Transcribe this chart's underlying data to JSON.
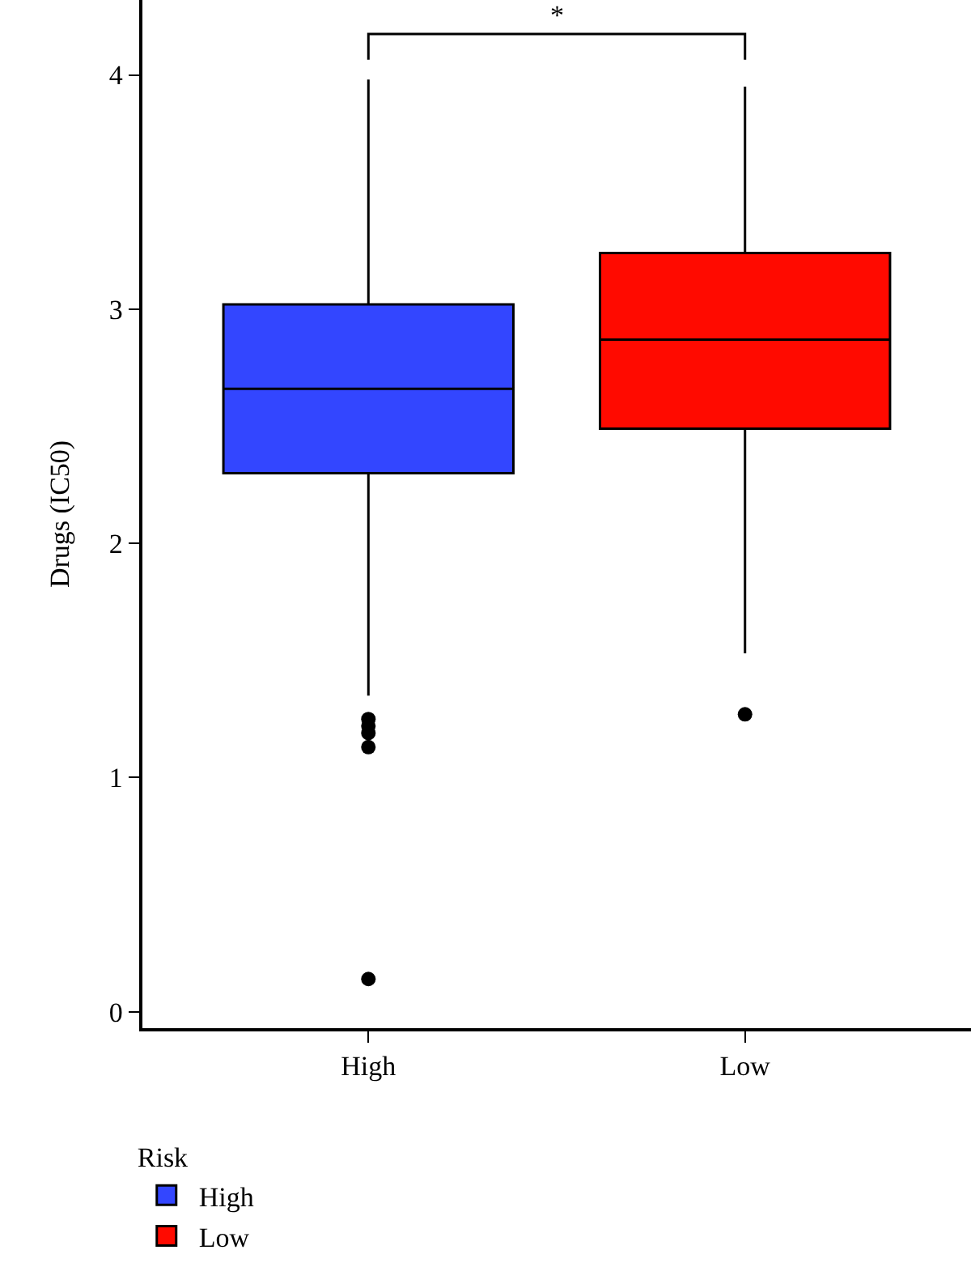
{
  "chart_data": {
    "type": "box",
    "ylabel": "Drugs (IC50)",
    "legend_title": "Risk",
    "categories": [
      "High",
      "Low"
    ],
    "series": [
      {
        "name": "High",
        "color": "#3346ff",
        "boxes": [
          {
            "low": 1.35,
            "q1": 2.3,
            "median": 2.66,
            "q3": 3.02,
            "high": 3.98,
            "outliers": [
              1.25,
              1.22,
              1.19,
              1.13,
              0.14
            ]
          },
          null
        ]
      },
      {
        "name": "Low",
        "color": "#ff0a00",
        "boxes": [
          null,
          {
            "low": 1.53,
            "q1": 2.49,
            "median": 2.87,
            "q3": 3.24,
            "high": 3.95,
            "outliers": [
              1.27
            ]
          }
        ]
      }
    ],
    "ylim": [
      -0.07,
      4.32
    ],
    "yticks": [
      0,
      1,
      2,
      3,
      4
    ],
    "grid": false,
    "legend": "bottom left",
    "annotations": [
      "*"
    ]
  }
}
